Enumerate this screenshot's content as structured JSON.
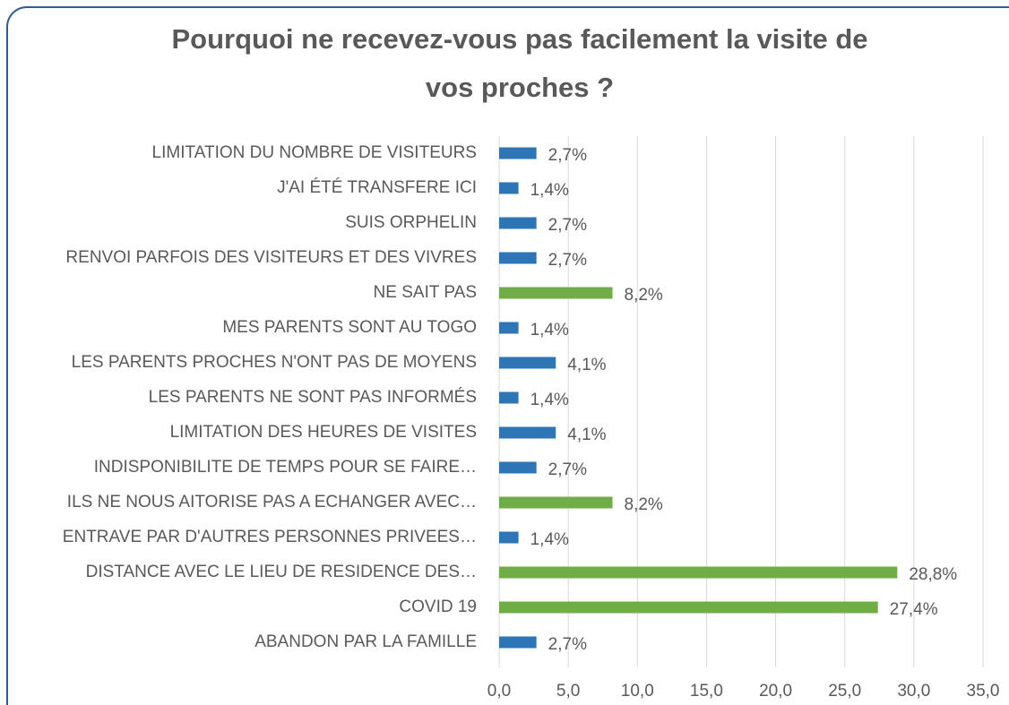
{
  "chart_data": {
    "type": "hbar",
    "title": [
      "Pourquoi ne recevez-vous pas facilement la visite de",
      "vos proches ?"
    ],
    "categories": [
      "LIMITATION DU NOMBRE DE VISITEURS",
      "J'AI ÉTÉ TRANSFERE ICI",
      "SUIS ORPHELIN",
      "RENVOI PARFOIS DES VISITEURS ET DES VIVRES",
      "NE SAIT PAS",
      "MES PARENTS SONT AU TOGO",
      "LES PARENTS PROCHES N'ONT PAS DE MOYENS",
      "LES PARENTS NE SONT PAS INFORMÉS",
      "LIMITATION DES HEURES DE VISITES",
      "INDISPONIBILITE DE TEMPS POUR SE FAIRE…",
      "ILS NE NOUS AITORISE PAS A ECHANGER AVEC…",
      "ENTRAVE PAR D'AUTRES PERSONNES PRIVEES…",
      "DISTANCE AVEC LE LIEU DE RESIDENCE DES…",
      "COVID 19",
      "ABANDON PAR LA FAMILLE"
    ],
    "values": [
      2.7,
      1.4,
      2.7,
      2.7,
      8.2,
      1.4,
      4.1,
      1.4,
      4.1,
      2.7,
      8.2,
      1.4,
      28.8,
      27.4,
      2.7
    ],
    "value_labels": [
      "2,7%",
      "1,4%",
      "2,7%",
      "2,7%",
      "8,2%",
      "1,4%",
      "4,1%",
      "1,4%",
      "4,1%",
      "2,7%",
      "8,2%",
      "1,4%",
      "28,8%",
      "27,4%",
      "2,7%"
    ],
    "colors": [
      "#2e75b6",
      "#2e75b6",
      "#2e75b6",
      "#2e75b6",
      "#70ad47",
      "#2e75b6",
      "#2e75b6",
      "#2e75b6",
      "#2e75b6",
      "#2e75b6",
      "#70ad47",
      "#2e75b6",
      "#70ad47",
      "#70ad47",
      "#2e75b6"
    ],
    "xlim": [
      0,
      35
    ],
    "xticks": [
      {
        "value": 0,
        "label": "0,0"
      },
      {
        "value": 5,
        "label": "5,0"
      },
      {
        "value": 10,
        "label": "10,0"
      },
      {
        "value": 15,
        "label": "15,0"
      },
      {
        "value": 20,
        "label": "20,0"
      },
      {
        "value": 25,
        "label": "25,0"
      },
      {
        "value": 30,
        "label": "30,0"
      },
      {
        "value": 35,
        "label": "35,0"
      }
    ],
    "grid": true
  }
}
